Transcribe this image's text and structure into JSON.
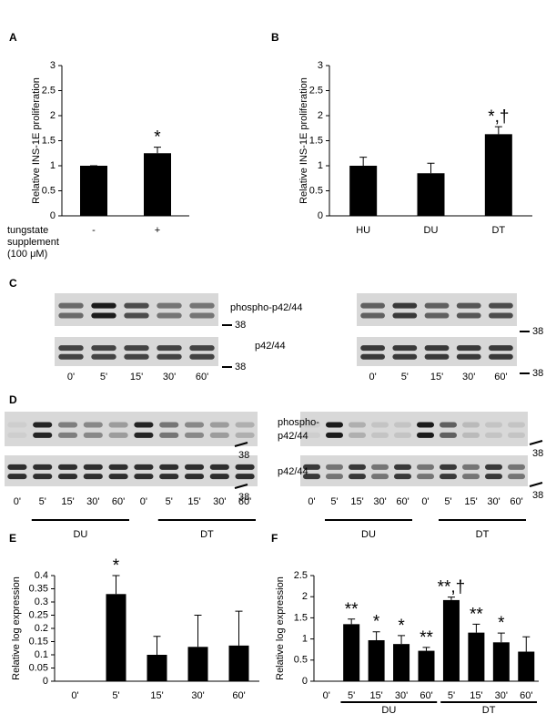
{
  "chart_data": [
    {
      "type": "bar",
      "panel": "A",
      "ylabel": "Relative INS-1E proliferation",
      "categories": [
        "-",
        "+"
      ],
      "values": [
        1,
        1.25
      ],
      "errors": [
        0,
        0.12
      ],
      "annotations": [
        null,
        "*"
      ],
      "x_label_lines": [
        "tungstate",
        "supplement",
        "(100 μM)"
      ],
      "color": "#000000",
      "ylim": [
        0,
        3
      ],
      "yticks": [
        0,
        0.5,
        1,
        1.5,
        2,
        2.5,
        3
      ]
    },
    {
      "type": "bar",
      "panel": "B",
      "ylabel": "Relative INS-1E proliferation",
      "categories": [
        "HU",
        "DU",
        "DT"
      ],
      "values": [
        1,
        0.85,
        1.63
      ],
      "errors": [
        0.17,
        0.2,
        0.15
      ],
      "annotations": [
        null,
        null,
        "*,†"
      ],
      "color": "#000000",
      "ylim": [
        0,
        3
      ],
      "yticks": [
        0,
        0.5,
        1,
        1.5,
        2,
        2.5,
        3
      ]
    },
    {
      "type": "bar",
      "panel": "E",
      "ylabel": "Relative log expression",
      "categories": [
        "0'",
        "5'",
        "15'",
        "30'",
        "60'"
      ],
      "values": [
        0,
        0.33,
        0.1,
        0.13,
        0.135
      ],
      "errors": [
        0,
        0.07,
        0.07,
        0.12,
        0.13
      ],
      "annotations": [
        null,
        "*",
        null,
        null,
        null
      ],
      "color": "#000000",
      "ylim": [
        0,
        0.4
      ],
      "yticks": [
        0,
        0.05,
        0.1,
        0.15,
        0.2,
        0.25,
        0.3,
        0.35,
        0.4
      ]
    },
    {
      "type": "bar",
      "panel": "F",
      "ylabel": "Relative log expression",
      "categories": [
        "0'",
        "5'",
        "15'",
        "30'",
        "60'",
        "5'",
        "15'",
        "30'",
        "60'"
      ],
      "values": [
        0,
        1.35,
        0.97,
        0.88,
        0.72,
        1.92,
        1.15,
        0.92,
        0.7
      ],
      "errors": [
        0,
        0.12,
        0.2,
        0.2,
        0.08,
        0.07,
        0.2,
        0.22,
        0.35
      ],
      "annotations": [
        null,
        "**",
        "*",
        "*",
        "**",
        "**,†",
        "**",
        "*",
        null
      ],
      "groups": [
        "DU",
        "DT"
      ],
      "color": "#000000",
      "ylim": [
        0,
        2.5
      ],
      "yticks": [
        0,
        0.5,
        1,
        1.5,
        2,
        2.5
      ]
    }
  ],
  "blots": {
    "panel_c": "C",
    "panel_d": "D",
    "c_labels": [
      "phospho-p42/44",
      "p42/44"
    ],
    "d_labels": [
      "phospho-",
      "p42/44",
      "p42/44"
    ],
    "marker": "38",
    "lanes": [
      "0'",
      "5'",
      "15'",
      "30'",
      "60'"
    ],
    "groups": [
      "DU",
      "DT"
    ]
  }
}
